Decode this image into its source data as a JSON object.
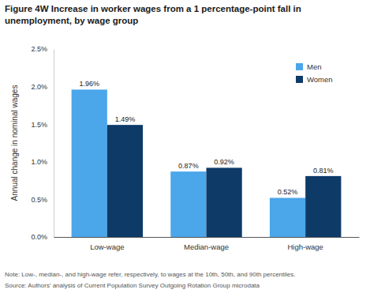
{
  "chart_data": {
    "type": "bar",
    "title": "Figure 4W  Increase in worker wages from a 1 percentage-point fall in unemployment, by wage group",
    "y_label": "Annual change in nominal wages",
    "categories": [
      "Low-wage",
      "Median-wage",
      "High-wage"
    ],
    "series": [
      {
        "name": "Men",
        "color": "#4ba6ea",
        "values": [
          1.96,
          0.87,
          0.52
        ],
        "value_labels": [
          "1.96%",
          "0.87%",
          "0.52%"
        ]
      },
      {
        "name": "Women",
        "color": "#0e3a68",
        "values": [
          1.49,
          0.92,
          0.81
        ],
        "value_labels": [
          "1.49%",
          "0.92%",
          "0.81%"
        ]
      }
    ],
    "ylim": [
      0,
      2.5
    ],
    "yticks": [
      {
        "value": 0,
        "label": "0.0%"
      },
      {
        "value": 0.5,
        "label": "0.5%"
      },
      {
        "value": 1,
        "label": "1.0%"
      },
      {
        "value": 1.5,
        "label": "1.5%"
      },
      {
        "value": 2,
        "label": "2.0%"
      },
      {
        "value": 2.5,
        "label": "2.5%"
      }
    ],
    "grid": false,
    "legend": "top-right",
    "data_labels": true,
    "annotations": [
      "Note: Low-, median-, and high-wage refer, respectively, to wages at the 10th, 50th, and 90th percentiles.",
      "Source: Authors' analysis of Current Population Survey Outgoing Rotation Group microdata"
    ]
  }
}
